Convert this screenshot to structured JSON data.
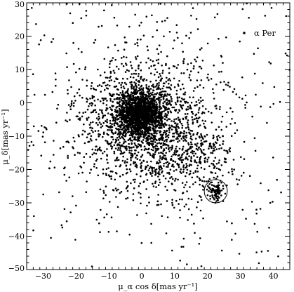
{
  "chart_data": {
    "type": "scatter",
    "xlabel": "μ_α cos δ[mas yr⁻¹]",
    "ylabel": "μ_δ[mas yr⁻¹]",
    "xlim": [
      -35,
      45
    ],
    "ylim": [
      -50,
      30
    ],
    "x_ticks": [
      -30,
      -20,
      -10,
      0,
      10,
      20,
      30,
      40
    ],
    "y_ticks": [
      30,
      20,
      10,
      0,
      -10,
      -20,
      -30,
      -40,
      -50
    ],
    "x_tick_labels": [
      "−30",
      "−20",
      "−10",
      "0",
      "10",
      "20",
      "30",
      "40"
    ],
    "y_tick_labels": [
      "30",
      "20",
      "10",
      "0",
      "−10",
      "−20",
      "−30",
      "−40",
      "−50"
    ],
    "grid": false,
    "legend_position": "top-right",
    "legend": {
      "marker": "•",
      "label": "α Per"
    },
    "marker_color": "#000000",
    "circle_annotation": {
      "center": [
        22.5,
        -26.5
      ],
      "radius": 3.5
    },
    "clusters": [
      {
        "center": [
          -0.5,
          -3.5
        ],
        "sigma": [
          3.5,
          3.5
        ],
        "count": 1400
      },
      {
        "center": [
          0,
          -6
        ],
        "sigma": [
          9,
          9
        ],
        "count": 1100
      },
      {
        "center": [
          1,
          -6
        ],
        "sigma": [
          17,
          15
        ],
        "count": 600
      },
      {
        "center": [
          15,
          -16
        ],
        "sigma": [
          7,
          6
        ],
        "count": 300
      },
      {
        "center": [
          22.7,
          -26.5
        ],
        "sigma": [
          1.2,
          1.2
        ],
        "count": 90
      }
    ],
    "uniform_background_count": 160,
    "random_seed": 7
  }
}
